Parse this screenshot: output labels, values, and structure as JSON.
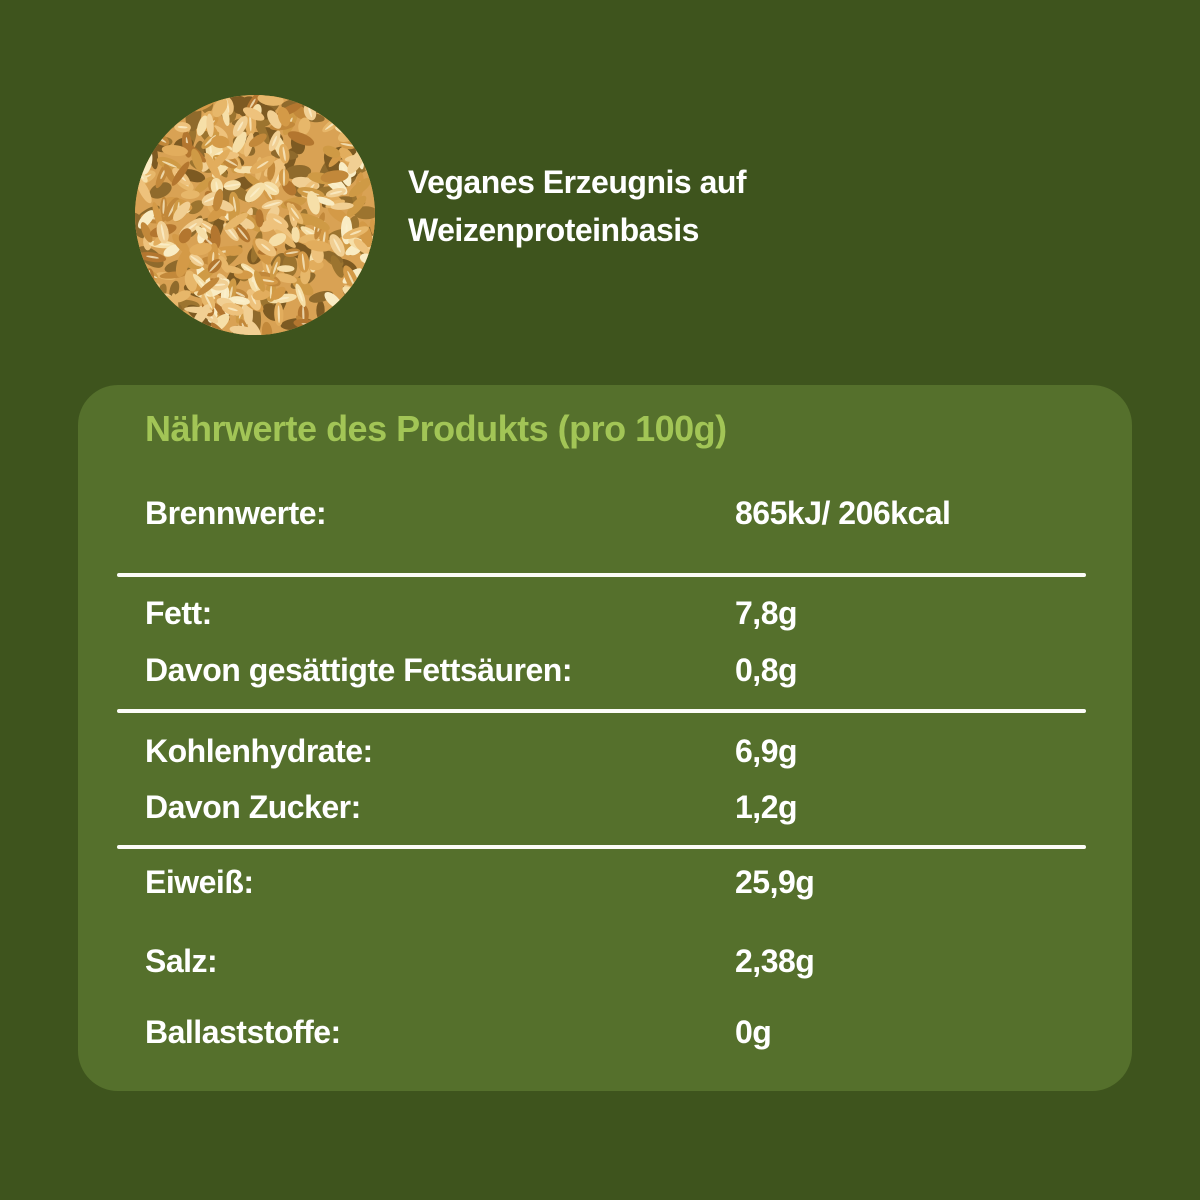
{
  "header": {
    "image_name": "wheat-grains-photo",
    "caption_line1": "Veganes Erzeugnis auf",
    "caption_line2": "Weizenproteinbasis"
  },
  "panel": {
    "title": "Nährwerte des Produkts (pro 100g)",
    "groups": [
      {
        "rows": [
          {
            "label": "Brennwerte:",
            "value": "865kJ/ 206kcal"
          }
        ]
      },
      {
        "rows": [
          {
            "label": "Fett:",
            "value": "7,8g"
          },
          {
            "label": "Davon gesättigte Fettsäuren:",
            "value": "0,8g"
          }
        ]
      },
      {
        "rows": [
          {
            "label": "Kohlenhydrate:",
            "value": "6,9g"
          },
          {
            "label": "Davon Zucker:",
            "value": "1,2g"
          }
        ]
      },
      {
        "rows": [
          {
            "label": "Eiweiß:",
            "value": "25,9g"
          },
          {
            "label": "Salz:",
            "value": "2,38g"
          },
          {
            "label": "Ballaststoffe:",
            "value": "0g"
          }
        ]
      }
    ]
  },
  "colors": {
    "background": "#3E541D",
    "panel": "#55702C",
    "title_green": "#A2C556",
    "text": "#FFFFFF",
    "divider": "#FCFCF8",
    "wheat_base": "#D9A254"
  }
}
